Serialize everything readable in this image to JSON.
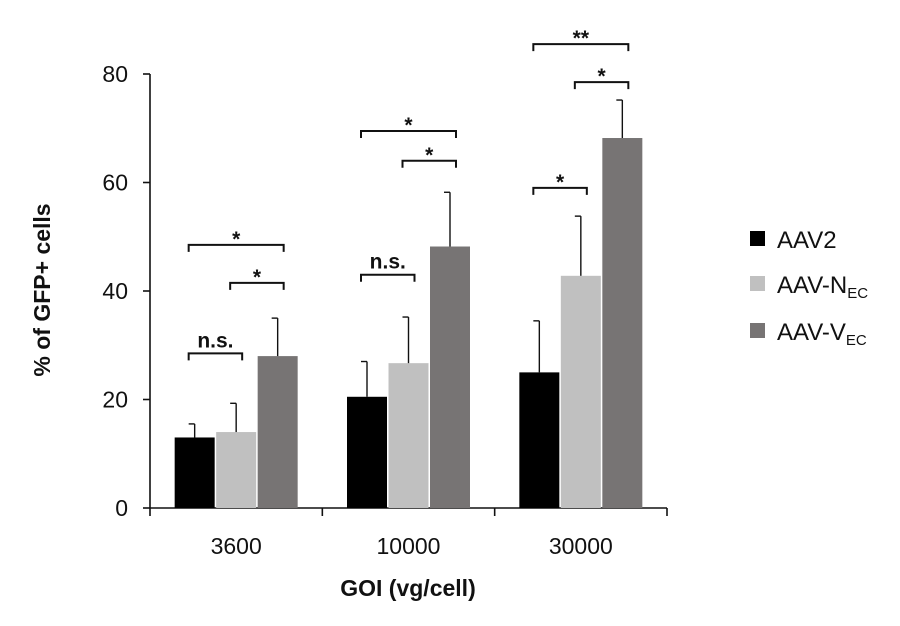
{
  "chart_data": {
    "type": "bar",
    "title": "",
    "xlabel": "GOI (vg/cell)",
    "ylabel": "% of GFP+ cells",
    "ylim": [
      0,
      80
    ],
    "yticks": [
      "0",
      "20",
      "40",
      "60",
      "80"
    ],
    "categories": [
      "3600",
      "10000",
      "30000"
    ],
    "grid": false,
    "legend_position": "right",
    "series": [
      {
        "name": "AAV2",
        "legend_main": "AAV2",
        "legend_sub": "",
        "color": "#000000",
        "values": [
          13,
          20.5,
          25
        ],
        "errors": [
          2.5,
          6.5,
          9.5
        ]
      },
      {
        "name": "AAV-NEC",
        "legend_main": "AAV-N",
        "legend_sub": "EC",
        "color": "#c0c0c0",
        "values": [
          14,
          26.7,
          42.8
        ],
        "errors": [
          5.3,
          8.5,
          11
        ]
      },
      {
        "name": "AAV-VEC",
        "legend_main": "AAV-V",
        "legend_sub": "EC",
        "color": "#777474",
        "values": [
          28,
          48.2,
          68.2
        ],
        "errors": [
          7,
          10,
          7
        ]
      }
    ],
    "significance": [
      {
        "category": 0,
        "from": 0,
        "to": 1,
        "label": "n.s.",
        "y": 28.5
      },
      {
        "category": 0,
        "from": 1,
        "to": 2,
        "label": "*",
        "y": 41.5
      },
      {
        "category": 0,
        "from": 0,
        "to": 2,
        "label": "*",
        "y": 48.5
      },
      {
        "category": 1,
        "from": 0,
        "to": 1,
        "label": "n.s.",
        "y": 43
      },
      {
        "category": 1,
        "from": 1,
        "to": 2,
        "label": "*",
        "y": 64
      },
      {
        "category": 1,
        "from": 0,
        "to": 2,
        "label": "*",
        "y": 69.5
      },
      {
        "category": 2,
        "from": 0,
        "to": 1,
        "label": "*",
        "y": 59
      },
      {
        "category": 2,
        "from": 1,
        "to": 2,
        "label": "*",
        "y": 78.5
      },
      {
        "category": 2,
        "from": 0,
        "to": 2,
        "label": "**",
        "y": 85.5
      }
    ]
  }
}
